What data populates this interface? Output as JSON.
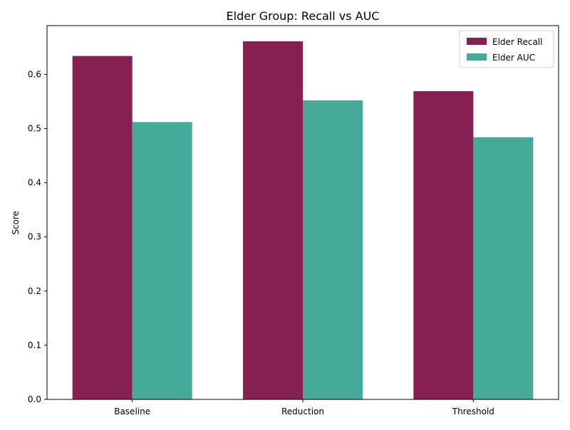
{
  "chart_data": {
    "type": "bar",
    "title": "Elder Group: Recall vs AUC",
    "xlabel": "",
    "ylabel": "Score",
    "categories": [
      "Baseline",
      "Reduction",
      "Threshold"
    ],
    "series": [
      {
        "name": "Elder Recall",
        "values": [
          0.634,
          0.661,
          0.569
        ],
        "color": "#872052"
      },
      {
        "name": "Elder AUC",
        "values": [
          0.512,
          0.552,
          0.484
        ],
        "color": "#46aa9b"
      }
    ],
    "ylim": [
      0,
      0.69
    ],
    "yticks": [
      "0.0",
      "0.1",
      "0.2",
      "0.3",
      "0.4",
      "0.5",
      "0.6"
    ],
    "grid": false,
    "legend_position": "top-right"
  }
}
